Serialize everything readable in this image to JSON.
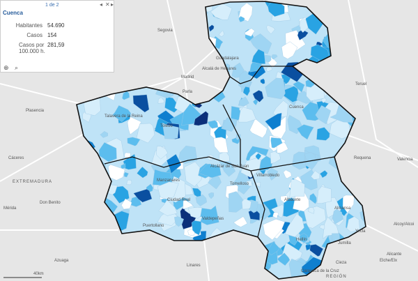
{
  "popup": {
    "pager": "1 de 2",
    "title": "Cuenca",
    "rows": [
      {
        "label": "Habitantes",
        "value": "54.690"
      },
      {
        "label": "Casos",
        "value": "154"
      },
      {
        "label": "Casos por 100.000 h.",
        "value": "281,59"
      }
    ]
  },
  "places": [
    "Segovia",
    "Madrid",
    "Alcalá de Henares",
    "Guadalajara",
    "Parla",
    "Teruel",
    "Plasencia",
    "Talavera de la Reina",
    "Toledo",
    "Cuenca",
    "Cáceres",
    "EXTREMADURA",
    "Valencia",
    "Requena",
    "Ciudad Real",
    "Valdepeñas",
    "Tomelloso",
    "Albacete",
    "Almansa",
    "Hellín",
    "Don Benito",
    "Puertollano",
    "Mérida",
    "Linares",
    "Jumilla",
    "Yecla",
    "Alcoy/Alcoi",
    "Alicante",
    "Elche/Elx",
    "Caravaca de la Cruz",
    "REGIÓN",
    "Cieza",
    "Azuaga",
    "Villarrobledo",
    "Alcázar de San Juan",
    "Manzanares"
  ],
  "scale": "40km"
}
